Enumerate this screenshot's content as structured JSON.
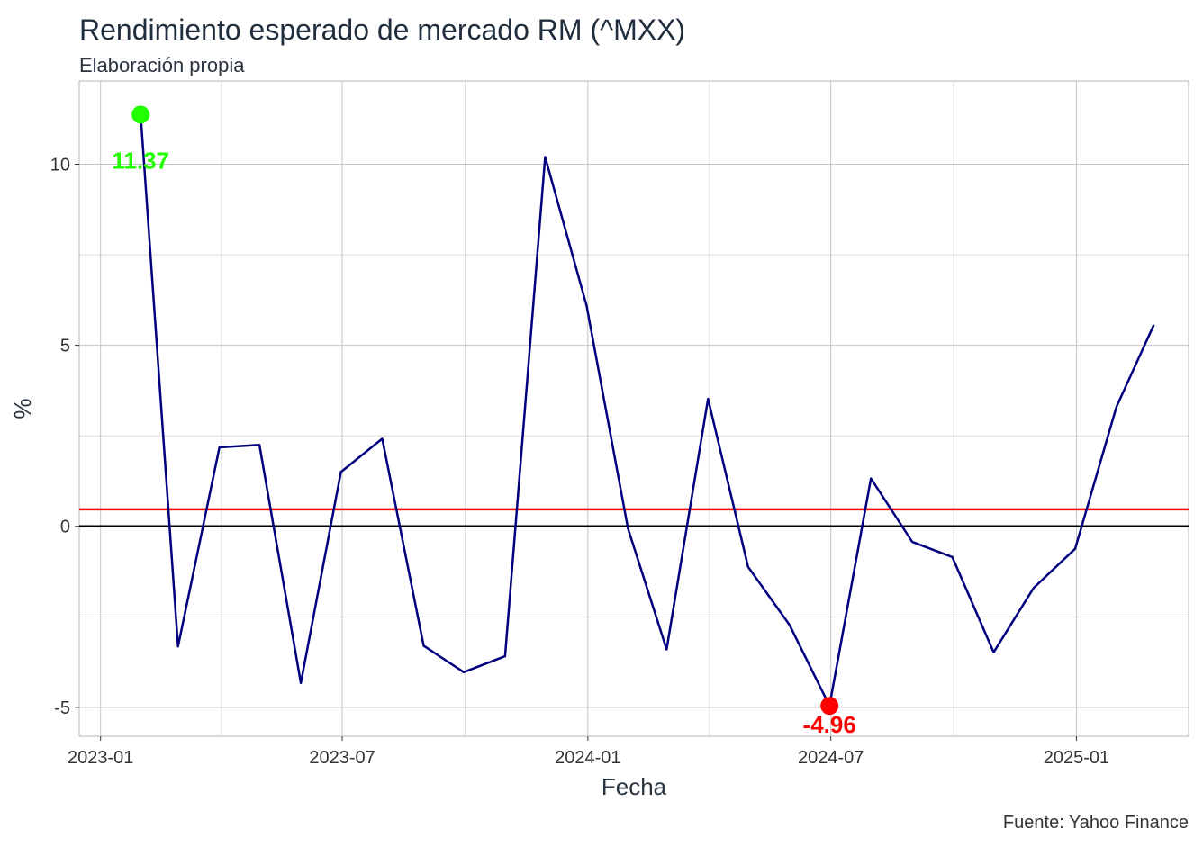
{
  "chart_data": {
    "type": "line",
    "title": "Rendimiento esperado de mercado RM (^MXX)",
    "subtitle": "Elaboración propia",
    "xlabel": "Fecha",
    "ylabel": "%",
    "caption": "Fuente: Yahoo Finance",
    "x_ticks": [
      "2023-01",
      "2023-07",
      "2024-01",
      "2024-07",
      "2025-01"
    ],
    "y_ticks": [
      -5,
      0,
      5,
      10
    ],
    "ylim": [
      -5.8,
      12.3
    ],
    "xlim": [
      "2022-12-16",
      "2025-03-26"
    ],
    "grid": true,
    "series": [
      {
        "color": "#00007f",
        "x": [
          "2023-01-31",
          "2023-02-28",
          "2023-03-31",
          "2023-04-30",
          "2023-05-31",
          "2023-06-30",
          "2023-07-31",
          "2023-08-31",
          "2023-09-30",
          "2023-10-31",
          "2023-11-30",
          "2023-12-31",
          "2024-01-31",
          "2024-02-29",
          "2024-03-31",
          "2024-04-30",
          "2024-05-31",
          "2024-06-30",
          "2024-07-31",
          "2024-08-31",
          "2024-09-30",
          "2024-10-31",
          "2024-11-30",
          "2024-12-31",
          "2025-01-31",
          "2025-02-28"
        ],
        "y": [
          11.37,
          -3.32,
          2.18,
          2.25,
          -4.33,
          1.5,
          2.42,
          -3.3,
          -4.03,
          -3.59,
          10.2,
          6.1,
          -0.05,
          -3.4,
          3.52,
          -1.12,
          -2.72,
          -4.96,
          1.32,
          -0.43,
          -0.85,
          -3.48,
          -1.7,
          -0.62,
          3.3,
          5.57
        ]
      }
    ],
    "reference_lines": [
      {
        "y": 0,
        "color": "#000000"
      },
      {
        "y": 0.47,
        "color": "#ff0000"
      }
    ],
    "highlights": [
      {
        "x": "2023-01-31",
        "y": 11.37,
        "label": "11.37",
        "color": "#22ff00"
      },
      {
        "x": "2024-06-30",
        "y": -4.96,
        "label": "-4.96",
        "color": "#ff0000"
      }
    ]
  }
}
